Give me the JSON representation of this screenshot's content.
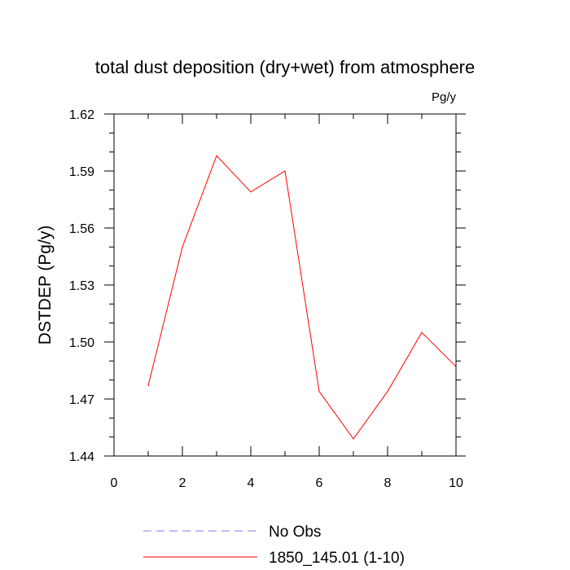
{
  "chart_data": {
    "type": "line",
    "title": "total dust deposition (dry+wet) from atmosphere",
    "units_label": "Pg/y",
    "xlabel": "",
    "ylabel": "DSTDEP  (Pg/y)",
    "xlim": [
      0,
      10
    ],
    "ylim": [
      1.44,
      1.62
    ],
    "x_ticks": [
      "0",
      "2",
      "4",
      "6",
      "8",
      "10"
    ],
    "y_ticks": [
      "1.44",
      "1.47",
      "1.50",
      "1.53",
      "1.56",
      "1.59",
      "1.62"
    ],
    "grid": false,
    "legend_placement": "bottom",
    "series": [
      {
        "name": "No Obs",
        "color": "#7b7bf0",
        "style": "dashed",
        "x": [],
        "values": []
      },
      {
        "name": "1850_145.01 (1-10)",
        "color": "#ff0000",
        "style": "solid",
        "x": [
          1,
          2,
          3,
          4,
          5,
          6,
          7,
          8,
          9,
          10
        ],
        "values": [
          1.477,
          1.55,
          1.598,
          1.579,
          1.59,
          1.474,
          1.449,
          1.474,
          1.505,
          1.487
        ]
      }
    ]
  }
}
